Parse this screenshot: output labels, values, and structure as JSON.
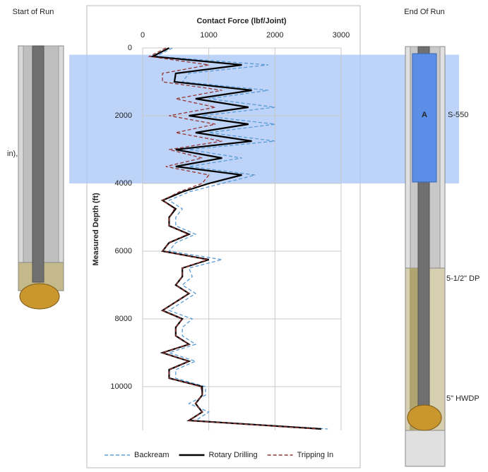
{
  "chart_data": {
    "type": "line",
    "x_label": "Contact Force (lbf/Joint)",
    "y_label": "Measured Depth (ft)",
    "xlim": [
      0,
      3000
    ],
    "xticks": [
      0,
      1000,
      2000,
      3000
    ],
    "ylim": [
      0,
      11500
    ],
    "yticks": [
      0,
      2000,
      4000,
      6000,
      8000,
      10000
    ],
    "y_inverted": true,
    "grid": true,
    "highlight_range": [
      200,
      4000
    ],
    "highlight_color": "#adc8f5",
    "depth": [
      0,
      250,
      500,
      750,
      1000,
      1250,
      1500,
      1750,
      2000,
      2250,
      2500,
      2750,
      3000,
      3250,
      3500,
      3750,
      4000,
      4250,
      4500,
      4750,
      5000,
      5250,
      5500,
      5750,
      6000,
      6250,
      6500,
      6750,
      7000,
      7250,
      7500,
      7750,
      8000,
      8250,
      8500,
      8750,
      9000,
      9250,
      9500,
      9750,
      10000,
      10250,
      10500,
      10750,
      11000,
      11250
    ],
    "series": [
      {
        "name": "Backream",
        "color": "#5b9bd5",
        "dashed": true,
        "values": [
          450,
          200,
          1900,
          700,
          600,
          1900,
          1000,
          2000,
          900,
          2000,
          1000,
          2000,
          700,
          1500,
          700,
          1700,
          1200,
          700,
          400,
          600,
          500,
          500,
          800,
          500,
          400,
          1200,
          700,
          750,
          600,
          800,
          600,
          400,
          750,
          600,
          600,
          800,
          400,
          800,
          500,
          500,
          950,
          950,
          700,
          1000,
          800,
          2800
        ]
      },
      {
        "name": "Rotary Drilling",
        "color": "#000000",
        "dashed": false,
        "values": [
          400,
          150,
          1500,
          500,
          480,
          1650,
          800,
          1600,
          700,
          1600,
          800,
          1650,
          500,
          1200,
          500,
          1500,
          1000,
          600,
          300,
          500,
          400,
          400,
          700,
          400,
          300,
          1000,
          600,
          600,
          500,
          700,
          500,
          300,
          600,
          500,
          500,
          700,
          300,
          700,
          400,
          400,
          900,
          900,
          800,
          900,
          700,
          2700
        ]
      },
      {
        "name": "Tripping In",
        "color": "#943634",
        "dashed": true,
        "values": [
          350,
          100,
          1000,
          300,
          300,
          1200,
          500,
          1100,
          400,
          1100,
          500,
          1200,
          400,
          900,
          350,
          1000,
          900,
          550,
          300,
          480,
          400,
          400,
          680,
          400,
          300,
          980,
          600,
          600,
          500,
          700,
          500,
          300,
          600,
          500,
          500,
          700,
          300,
          700,
          400,
          400,
          880,
          900,
          800,
          900,
          700,
          2650
        ]
      }
    ]
  },
  "left_panel": {
    "title": "Start of Run",
    "label": "in),"
  },
  "right_panel": {
    "title": "End Of Run",
    "component": "A",
    "labels": [
      "S-550",
      "5-1/2\" DP",
      "5\" HWDP"
    ]
  }
}
